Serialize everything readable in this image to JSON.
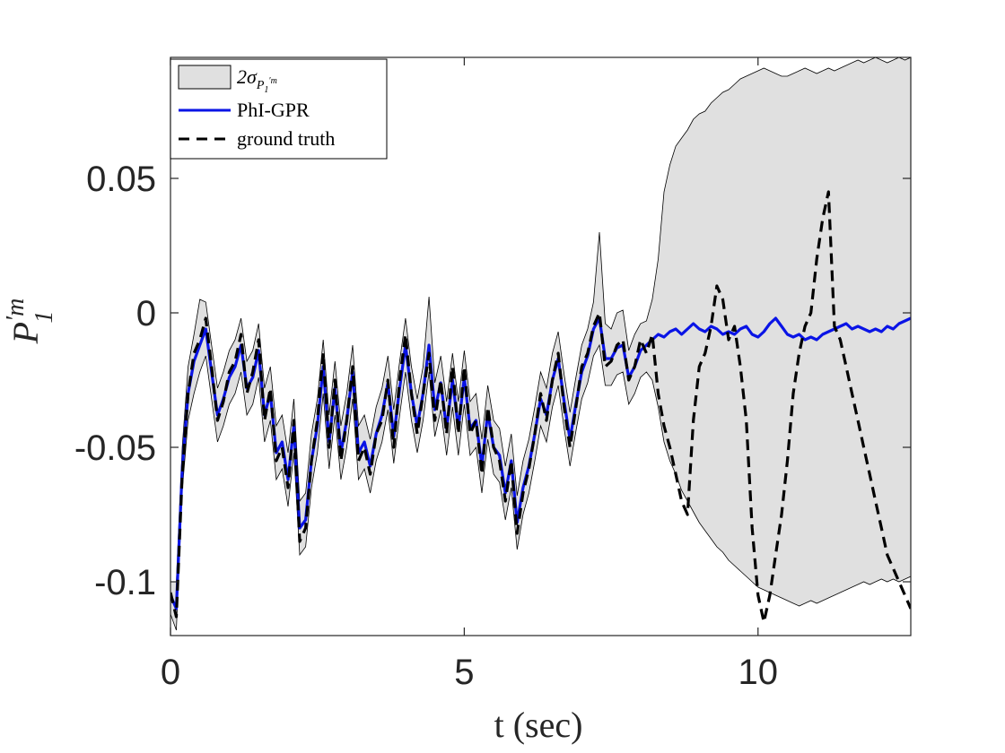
{
  "chart_data": {
    "type": "line",
    "title": "",
    "xlabel": "t (sec)",
    "ylabel_base": "P",
    "ylabel_sup": "′m",
    "ylabel_sub": "1",
    "xlim": [
      0,
      12.6
    ],
    "ylim": [
      -0.12,
      0.095
    ],
    "xticks": [
      0,
      5,
      10
    ],
    "xtick_labels": [
      "0",
      "5",
      "10"
    ],
    "yticks": [
      -0.1,
      -0.05,
      0,
      0.05
    ],
    "ytick_labels": [
      "-0.1",
      "-0.05",
      "0",
      "0.05"
    ],
    "legend": {
      "position": "top-left",
      "entries": [
        {
          "label_base": "2σ",
          "label_sub": "P",
          "label_subsub": "1",
          "label_subsup": "′m",
          "kind": "band"
        },
        {
          "label": "PhI-GPR",
          "kind": "line"
        },
        {
          "label": "ground truth",
          "kind": "dashed"
        }
      ]
    },
    "colors": {
      "band_fill": "#e0e0e0",
      "band_edge": "#000000",
      "prediction": "#0a14e6",
      "truth": "#000000",
      "axis": "#262626"
    },
    "series": [
      {
        "name": "ground truth",
        "x": [
          0,
          0.1,
          0.2,
          0.3,
          0.4,
          0.5,
          0.6,
          0.7,
          0.8,
          0.9,
          1.0,
          1.1,
          1.2,
          1.3,
          1.4,
          1.5,
          1.6,
          1.7,
          1.8,
          1.9,
          2.0,
          2.1,
          2.2,
          2.3,
          2.4,
          2.5,
          2.6,
          2.7,
          2.8,
          2.9,
          3.0,
          3.1,
          3.2,
          3.3,
          3.4,
          3.5,
          3.6,
          3.7,
          3.8,
          3.9,
          4.0,
          4.1,
          4.2,
          4.3,
          4.4,
          4.5,
          4.6,
          4.7,
          4.8,
          4.9,
          5.0,
          5.1,
          5.2,
          5.3,
          5.4,
          5.5,
          5.6,
          5.7,
          5.8,
          5.9,
          6.0,
          6.1,
          6.2,
          6.3,
          6.4,
          6.5,
          6.6,
          6.7,
          6.8,
          6.9,
          7.0,
          7.1,
          7.2,
          7.3,
          7.4,
          7.5,
          7.6,
          7.7,
          7.8,
          7.9,
          8.0,
          8.1,
          8.2,
          8.3,
          8.4,
          8.5,
          8.6,
          8.7,
          8.8,
          8.9,
          9.0,
          9.1,
          9.2,
          9.3,
          9.4,
          9.5,
          9.6,
          9.7,
          9.8,
          9.9,
          10.0,
          10.1,
          10.2,
          10.3,
          10.4,
          10.5,
          10.6,
          10.7,
          10.8,
          10.9,
          11.0,
          11.1,
          11.2,
          11.3,
          11.4,
          11.5,
          11.6,
          11.7,
          11.8,
          11.9,
          12.0,
          12.1,
          12.2,
          12.3,
          12.4,
          12.5,
          12.6
        ],
        "values": [
          -0.104,
          -0.113,
          -0.06,
          -0.03,
          -0.015,
          -0.01,
          -0.002,
          -0.02,
          -0.04,
          -0.033,
          -0.022,
          -0.018,
          -0.008,
          -0.03,
          -0.022,
          -0.01,
          -0.04,
          -0.028,
          -0.055,
          -0.05,
          -0.065,
          -0.04,
          -0.085,
          -0.08,
          -0.055,
          -0.04,
          -0.015,
          -0.05,
          -0.025,
          -0.055,
          -0.04,
          -0.02,
          -0.055,
          -0.05,
          -0.06,
          -0.045,
          -0.04,
          -0.025,
          -0.05,
          -0.025,
          -0.008,
          -0.03,
          -0.045,
          -0.03,
          -0.015,
          -0.04,
          -0.025,
          -0.045,
          -0.02,
          -0.045,
          -0.02,
          -0.045,
          -0.04,
          -0.06,
          -0.035,
          -0.05,
          -0.055,
          -0.07,
          -0.055,
          -0.082,
          -0.067,
          -0.058,
          -0.045,
          -0.03,
          -0.04,
          -0.025,
          -0.015,
          -0.035,
          -0.05,
          -0.035,
          -0.02,
          -0.015,
          -0.005,
          0.0,
          -0.02,
          -0.018,
          -0.012,
          -0.01,
          -0.025,
          -0.02,
          -0.01,
          -0.015,
          -0.008,
          -0.03,
          -0.042,
          -0.05,
          -0.06,
          -0.07,
          -0.075,
          -0.04,
          -0.02,
          -0.015,
          -0.005,
          0.01,
          0.005,
          -0.01,
          -0.005,
          -0.02,
          -0.04,
          -0.08,
          -0.105,
          -0.115,
          -0.105,
          -0.09,
          -0.075,
          -0.055,
          -0.03,
          -0.015,
          -0.005,
          0.0,
          0.02,
          0.035,
          0.045,
          -0.005,
          -0.01,
          -0.02,
          -0.03,
          -0.04,
          -0.05,
          -0.06,
          -0.07,
          -0.08,
          -0.09,
          -0.095,
          -0.1,
          -0.105,
          -0.11
        ]
      },
      {
        "name": "PhI-GPR",
        "x": [
          0,
          0.1,
          0.2,
          0.3,
          0.4,
          0.5,
          0.6,
          0.7,
          0.8,
          0.9,
          1.0,
          1.1,
          1.2,
          1.3,
          1.4,
          1.5,
          1.6,
          1.7,
          1.8,
          1.9,
          2.0,
          2.1,
          2.2,
          2.3,
          2.4,
          2.5,
          2.6,
          2.7,
          2.8,
          2.9,
          3.0,
          3.1,
          3.2,
          3.3,
          3.4,
          3.5,
          3.6,
          3.7,
          3.8,
          3.9,
          4.0,
          4.1,
          4.2,
          4.3,
          4.4,
          4.5,
          4.6,
          4.7,
          4.8,
          4.9,
          5.0,
          5.1,
          5.2,
          5.3,
          5.4,
          5.5,
          5.6,
          5.7,
          5.8,
          5.9,
          6.0,
          6.1,
          6.2,
          6.3,
          6.4,
          6.5,
          6.6,
          6.7,
          6.8,
          6.9,
          7.0,
          7.1,
          7.2,
          7.3,
          7.4,
          7.5,
          7.6,
          7.7,
          7.8,
          7.9,
          8.0,
          8.1,
          8.2,
          8.3,
          8.4,
          8.5,
          8.6,
          8.7,
          8.8,
          8.9,
          9.0,
          9.1,
          9.2,
          9.3,
          9.4,
          9.5,
          9.6,
          9.7,
          9.8,
          9.9,
          10.0,
          10.1,
          10.2,
          10.3,
          10.4,
          10.5,
          10.6,
          10.7,
          10.8,
          10.9,
          11.0,
          11.1,
          11.2,
          11.3,
          11.4,
          11.5,
          11.6,
          11.7,
          11.8,
          11.9,
          12.0,
          12.1,
          12.2,
          12.3,
          12.4,
          12.5,
          12.6
        ],
        "values": [
          -0.105,
          -0.11,
          -0.058,
          -0.03,
          -0.018,
          -0.012,
          -0.006,
          -0.022,
          -0.038,
          -0.032,
          -0.024,
          -0.02,
          -0.012,
          -0.028,
          -0.024,
          -0.014,
          -0.038,
          -0.03,
          -0.052,
          -0.048,
          -0.062,
          -0.042,
          -0.08,
          -0.077,
          -0.055,
          -0.042,
          -0.02,
          -0.048,
          -0.028,
          -0.052,
          -0.04,
          -0.022,
          -0.052,
          -0.048,
          -0.057,
          -0.045,
          -0.038,
          -0.026,
          -0.046,
          -0.028,
          -0.012,
          -0.03,
          -0.042,
          -0.03,
          -0.012,
          -0.036,
          -0.026,
          -0.043,
          -0.025,
          -0.043,
          -0.024,
          -0.043,
          -0.04,
          -0.057,
          -0.037,
          -0.05,
          -0.053,
          -0.067,
          -0.055,
          -0.078,
          -0.065,
          -0.057,
          -0.045,
          -0.032,
          -0.038,
          -0.025,
          -0.017,
          -0.033,
          -0.047,
          -0.034,
          -0.022,
          -0.016,
          -0.006,
          -0.002,
          -0.017,
          -0.017,
          -0.013,
          -0.012,
          -0.024,
          -0.02,
          -0.014,
          -0.012,
          -0.01,
          -0.008,
          -0.009,
          -0.007,
          -0.006,
          -0.008,
          -0.006,
          -0.004,
          -0.006,
          -0.007,
          -0.005,
          -0.006,
          -0.008,
          -0.007,
          -0.008,
          -0.006,
          -0.005,
          -0.008,
          -0.009,
          -0.007,
          -0.004,
          -0.002,
          -0.005,
          -0.008,
          -0.009,
          -0.008,
          -0.01,
          -0.009,
          -0.01,
          -0.008,
          -0.007,
          -0.006,
          -0.005,
          -0.004,
          -0.006,
          -0.005,
          -0.006,
          -0.007,
          -0.006,
          -0.007,
          -0.005,
          -0.006,
          -0.004,
          -0.003,
          -0.002
        ]
      }
    ],
    "band": {
      "name": "2σ band",
      "x": [
        0,
        0.1,
        0.2,
        0.3,
        0.4,
        0.5,
        0.6,
        0.7,
        0.8,
        0.9,
        1.0,
        1.1,
        1.2,
        1.3,
        1.4,
        1.5,
        1.6,
        1.7,
        1.8,
        1.9,
        2.0,
        2.1,
        2.2,
        2.3,
        2.4,
        2.5,
        2.6,
        2.7,
        2.8,
        2.9,
        3.0,
        3.1,
        3.2,
        3.3,
        3.4,
        3.5,
        3.6,
        3.7,
        3.8,
        3.9,
        4.0,
        4.1,
        4.2,
        4.3,
        4.4,
        4.5,
        4.6,
        4.7,
        4.8,
        4.9,
        5.0,
        5.1,
        5.2,
        5.3,
        5.4,
        5.5,
        5.6,
        5.7,
        5.8,
        5.9,
        6.0,
        6.1,
        6.2,
        6.3,
        6.4,
        6.5,
        6.6,
        6.7,
        6.8,
        6.9,
        7.0,
        7.1,
        7.2,
        7.3,
        7.4,
        7.5,
        7.6,
        7.7,
        7.8,
        7.9,
        8.0,
        8.1,
        8.2,
        8.3,
        8.4,
        8.5,
        8.6,
        8.7,
        8.8,
        8.9,
        9.0,
        9.1,
        9.2,
        9.3,
        9.4,
        9.5,
        9.6,
        9.7,
        9.8,
        9.9,
        10.0,
        10.1,
        10.2,
        10.3,
        10.4,
        10.5,
        10.6,
        10.7,
        10.8,
        10.9,
        11.0,
        11.1,
        11.2,
        11.3,
        11.4,
        11.5,
        11.6,
        11.7,
        11.8,
        11.9,
        12.0,
        12.1,
        12.2,
        12.3,
        12.4,
        12.5,
        12.6
      ],
      "upper": [
        -0.1,
        -0.1,
        -0.05,
        -0.02,
        -0.008,
        0.005,
        0.004,
        -0.012,
        -0.028,
        -0.022,
        -0.014,
        -0.01,
        -0.002,
        -0.018,
        -0.014,
        -0.004,
        -0.028,
        -0.02,
        -0.042,
        -0.038,
        -0.052,
        -0.032,
        -0.07,
        -0.067,
        -0.045,
        -0.032,
        -0.01,
        -0.038,
        -0.018,
        -0.042,
        -0.03,
        -0.012,
        -0.042,
        -0.038,
        -0.047,
        -0.035,
        -0.028,
        -0.016,
        -0.036,
        -0.018,
        -0.002,
        -0.02,
        -0.032,
        -0.02,
        0.006,
        -0.026,
        -0.016,
        -0.033,
        -0.015,
        -0.033,
        -0.014,
        -0.033,
        -0.03,
        -0.047,
        -0.027,
        -0.04,
        -0.043,
        -0.057,
        -0.045,
        -0.068,
        -0.055,
        -0.047,
        -0.035,
        -0.022,
        -0.028,
        -0.015,
        -0.007,
        -0.023,
        -0.037,
        -0.024,
        -0.012,
        -0.006,
        0.004,
        0.03,
        -0.004,
        -0.006,
        0.0,
        0.001,
        -0.014,
        -0.008,
        -0.004,
        -0.003,
        0.005,
        0.02,
        0.045,
        0.055,
        0.062,
        0.065,
        0.068,
        0.072,
        0.074,
        0.075,
        0.078,
        0.08,
        0.082,
        0.083,
        0.085,
        0.087,
        0.088,
        0.089,
        0.09,
        0.091,
        0.09,
        0.089,
        0.088,
        0.088,
        0.089,
        0.09,
        0.091,
        0.09,
        0.089,
        0.09,
        0.091,
        0.09,
        0.091,
        0.092,
        0.093,
        0.094,
        0.093,
        0.094,
        0.095,
        0.094,
        0.093,
        0.094,
        0.095,
        0.094,
        0.095
      ],
      "lower": [
        -0.112,
        -0.118,
        -0.066,
        -0.04,
        -0.03,
        -0.022,
        -0.016,
        -0.032,
        -0.048,
        -0.042,
        -0.034,
        -0.03,
        -0.022,
        -0.038,
        -0.034,
        -0.024,
        -0.048,
        -0.04,
        -0.062,
        -0.058,
        -0.072,
        -0.052,
        -0.09,
        -0.087,
        -0.065,
        -0.052,
        -0.03,
        -0.058,
        -0.038,
        -0.062,
        -0.05,
        -0.032,
        -0.062,
        -0.058,
        -0.067,
        -0.055,
        -0.048,
        -0.036,
        -0.056,
        -0.038,
        -0.022,
        -0.04,
        -0.052,
        -0.04,
        -0.022,
        -0.046,
        -0.036,
        -0.053,
        -0.035,
        -0.053,
        -0.034,
        -0.053,
        -0.05,
        -0.067,
        -0.047,
        -0.06,
        -0.063,
        -0.077,
        -0.065,
        -0.088,
        -0.075,
        -0.067,
        -0.055,
        -0.042,
        -0.048,
        -0.035,
        -0.027,
        -0.043,
        -0.057,
        -0.044,
        -0.032,
        -0.026,
        -0.016,
        -0.012,
        -0.027,
        -0.027,
        -0.023,
        -0.022,
        -0.034,
        -0.03,
        -0.024,
        -0.022,
        -0.025,
        -0.035,
        -0.048,
        -0.055,
        -0.06,
        -0.066,
        -0.07,
        -0.074,
        -0.078,
        -0.081,
        -0.084,
        -0.087,
        -0.089,
        -0.092,
        -0.094,
        -0.096,
        -0.098,
        -0.1,
        -0.102,
        -0.103,
        -0.104,
        -0.105,
        -0.106,
        -0.107,
        -0.108,
        -0.109,
        -0.108,
        -0.107,
        -0.108,
        -0.107,
        -0.106,
        -0.105,
        -0.104,
        -0.103,
        -0.102,
        -0.101,
        -0.1,
        -0.101,
        -0.1,
        -0.099,
        -0.1,
        -0.099,
        -0.1,
        -0.099,
        -0.098
      ]
    }
  }
}
